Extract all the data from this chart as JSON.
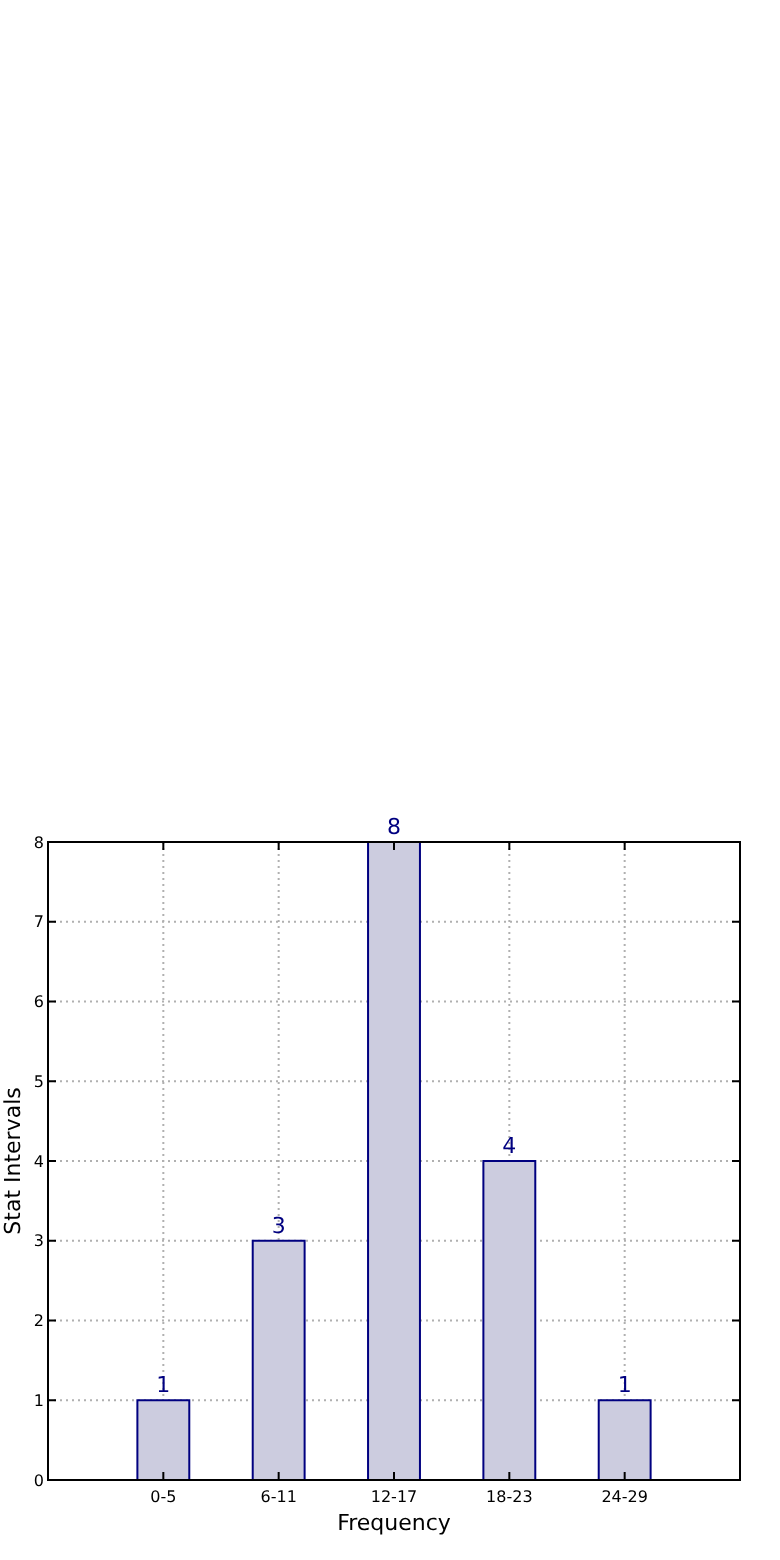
{
  "chart_data": {
    "type": "bar",
    "xlabel": "Frequency",
    "ylabel": "Stat Intervals",
    "categories": [
      "0-5",
      "6-11",
      "12-17",
      "18-23",
      "24-29"
    ],
    "values": [
      1,
      3,
      8,
      4,
      1
    ],
    "color": "#ccccdf",
    "ylim": [
      0,
      8
    ],
    "yticks": [
      0,
      1,
      2,
      3,
      4,
      5,
      6,
      7,
      8
    ],
    "grid": true,
    "data_labels": true
  }
}
